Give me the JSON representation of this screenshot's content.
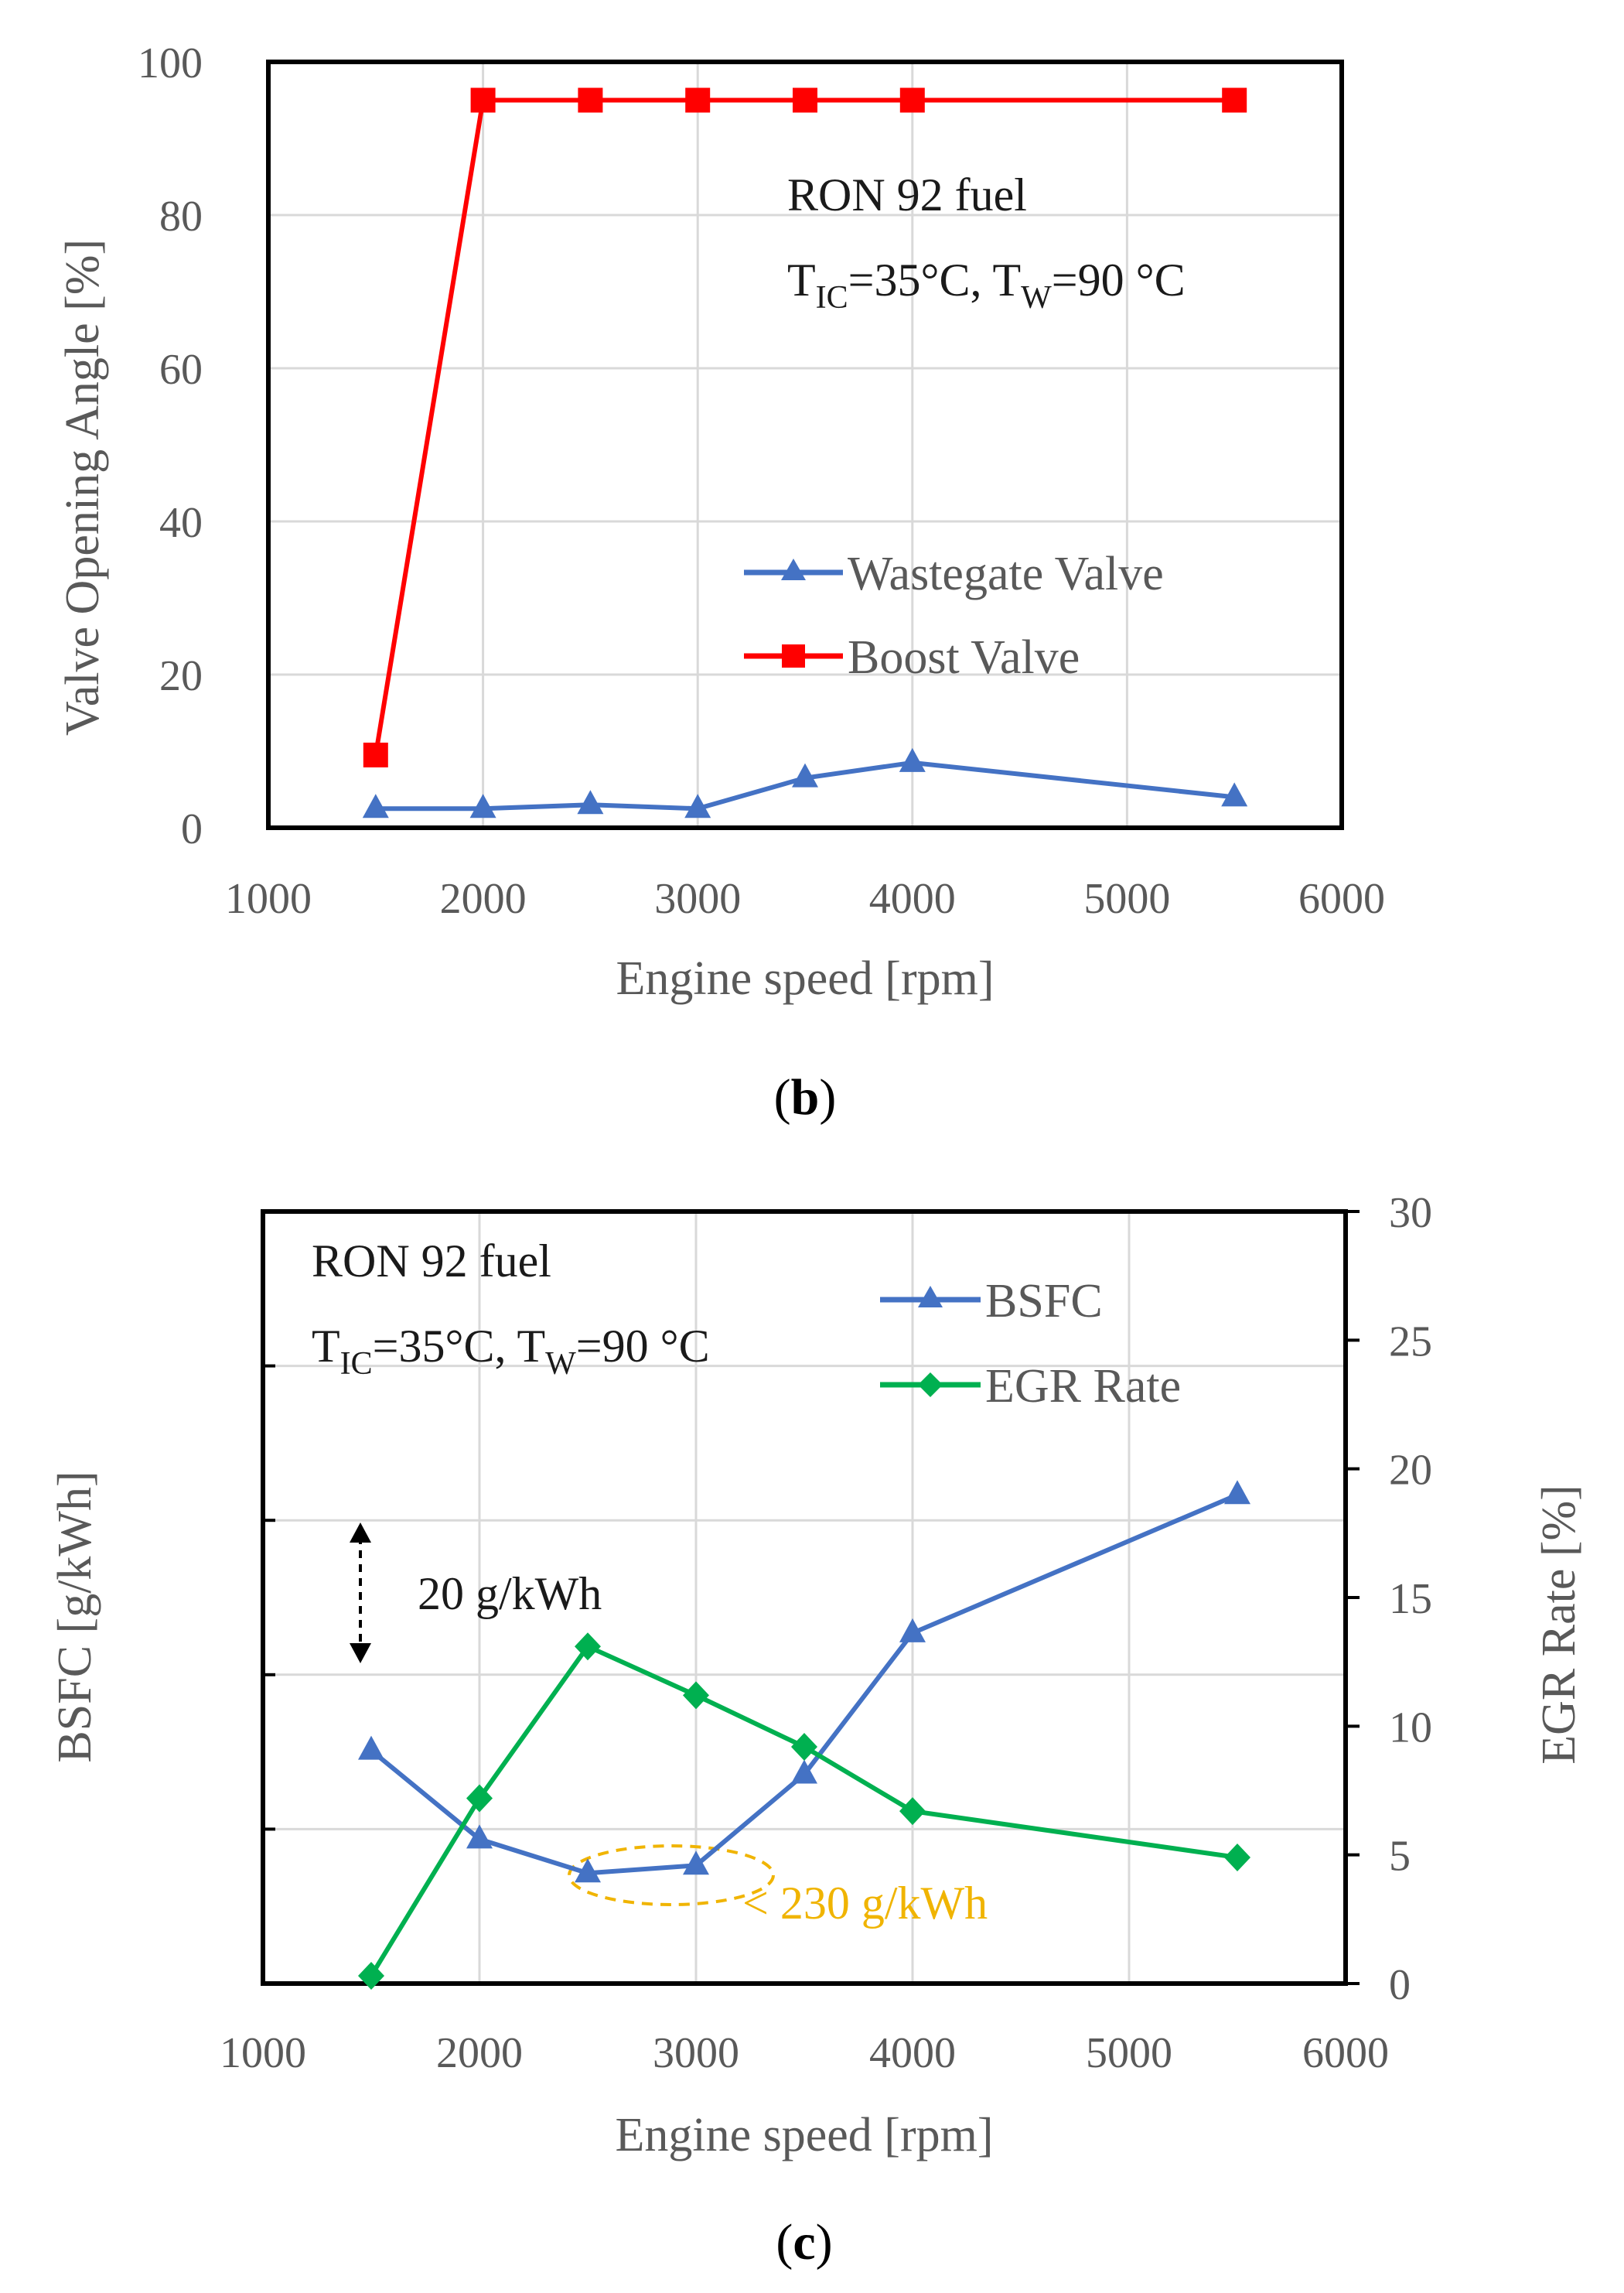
{
  "chart_data": [
    {
      "type": "line",
      "panel": "b",
      "caption": {
        "open": "(",
        "letter": "b",
        "close": ")"
      },
      "xlabel": "Engine speed [rpm]",
      "ylabel": "Valve Opening Angle [%]",
      "xlim": [
        1000,
        6000
      ],
      "ylim": [
        0,
        100
      ],
      "xticks": [
        1000,
        2000,
        3000,
        4000,
        5000,
        6000
      ],
      "yticks": [
        0,
        20,
        40,
        60,
        80,
        100
      ],
      "grid": true,
      "annotation": {
        "line1": "RON 92 fuel",
        "tic_base": "T",
        "tic_sub": "IC",
        "tic_eq": "=35°C, ",
        "tw_base": "T",
        "tw_sub": "W",
        "tw_eq": "=90 °C"
      },
      "legend_position": "center-right",
      "series": [
        {
          "name": "Wastegate Valve",
          "color": "#4472c4",
          "marker": "triangle",
          "x": [
            1500,
            2000,
            2500,
            3000,
            3500,
            4000,
            5500
          ],
          "y": [
            2.5,
            2.5,
            3,
            2.5,
            6.5,
            8.5,
            4
          ]
        },
        {
          "name": "Boost Valve",
          "color": "#ff0000",
          "marker": "square",
          "x": [
            1500,
            2000,
            2500,
            3000,
            3500,
            4000,
            5500
          ],
          "y": [
            9.5,
            95,
            95,
            95,
            95,
            95,
            95
          ]
        }
      ]
    },
    {
      "type": "line",
      "panel": "c",
      "caption": {
        "open": "(",
        "letter": "c",
        "close": ")"
      },
      "xlabel": "Engine speed [rpm]",
      "ylabel": "BSFC [g/kWh]",
      "y2label": "EGR Rate [%]",
      "xlim": [
        1000,
        6000
      ],
      "ylim_left_relative": [
        0,
        100
      ],
      "y2lim": [
        0,
        30
      ],
      "xticks": [
        1000,
        2000,
        3000,
        4000,
        5000,
        6000
      ],
      "y2ticks": [
        0,
        5,
        10,
        15,
        20,
        25,
        30
      ],
      "grid": true,
      "annotation": {
        "line1": "RON 92 fuel",
        "tic_base": "T",
        "tic_sub": "IC",
        "tic_eq": "=35°C, ",
        "tw_base": "T",
        "tw_sub": "W",
        "tw_eq": "=90 °C"
      },
      "scale_note": "20 g/kWh",
      "min_note": "< 230 g/kWh",
      "min_note_color": "#f0b400",
      "legend_position": "top-right",
      "series": [
        {
          "name": "BSFC",
          "color": "#4472c4",
          "marker": "triangle",
          "axis": "left",
          "x": [
            1500,
            2000,
            2500,
            3000,
            3500,
            4000,
            5500
          ],
          "y": [
            30.2,
            18.7,
            14.3,
            15.3,
            27.1,
            45.4,
            63.3
          ]
        },
        {
          "name": "EGR Rate",
          "color": "#00b050",
          "marker": "diamond",
          "axis": "right",
          "x": [
            1500,
            2000,
            2500,
            3000,
            3500,
            4000,
            5500
          ],
          "y": [
            0.3,
            7.2,
            13.1,
            11.2,
            9.2,
            6.7,
            4.9
          ]
        }
      ]
    }
  ]
}
